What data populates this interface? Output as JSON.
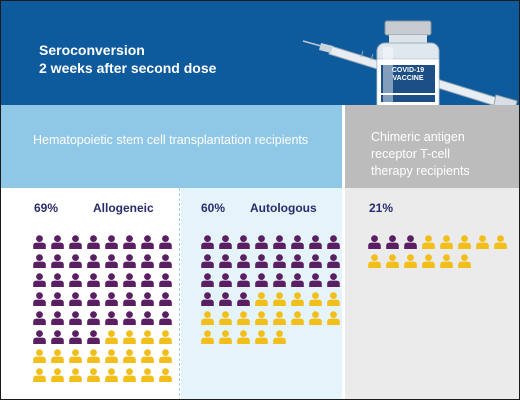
{
  "header": {
    "title_line1": "Seroconversion",
    "title_line2": "2 weeks after second dose",
    "vial_label_top": "COVID-19",
    "vial_label_bottom": "VACCINE"
  },
  "hsct": {
    "label": "Hematopoietic stem cell transplantation recipients",
    "allogeneic": {
      "percent": "69%",
      "name": "Allogeneic",
      "positive": 44,
      "negative": 20
    },
    "autologous": {
      "percent": "60%",
      "name": "Autologous",
      "positive": 27,
      "negative": 18
    }
  },
  "cart": {
    "label_line1": "Chimeric antigen",
    "label_line2": "receptor T-cell",
    "label_line3": "therapy recipients",
    "percent": "21%",
    "positive": 3,
    "negative": 11
  },
  "colors": {
    "header_bg": "#0d5a9c",
    "hsct_band": "#8fc7e6",
    "cart_band": "#bcbcbd",
    "seroconverted": "#5a1f63",
    "not_seroconverted": "#f2be1a",
    "text_dark": "#2a2c6e"
  }
}
